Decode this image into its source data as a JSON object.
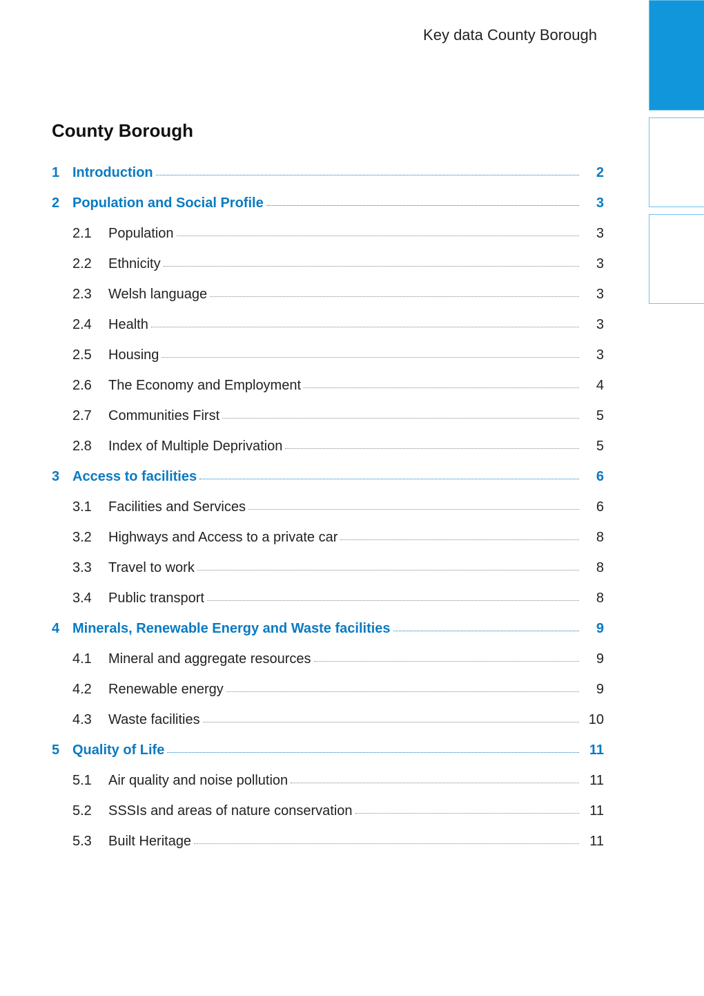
{
  "colors": {
    "accent": "#0a7ac2",
    "text": "#222222",
    "tab_border": "#6fc2e8",
    "tab_solid_bg": "#1296db"
  },
  "running_head": "Key data County Borough",
  "title": "County Borough",
  "toc": [
    {
      "kind": "section",
      "num": "1",
      "text": "Introduction",
      "page": "2"
    },
    {
      "kind": "section",
      "num": "2",
      "text": "Population and Social Profile",
      "page": "3"
    },
    {
      "kind": "sub",
      "sub": "2.1",
      "text": "Population",
      "page": "3"
    },
    {
      "kind": "sub",
      "sub": "2.2",
      "text": "Ethnicity",
      "page": "3"
    },
    {
      "kind": "sub",
      "sub": "2.3",
      "text": "Welsh language",
      "page": "3"
    },
    {
      "kind": "sub",
      "sub": "2.4",
      "text": "Health",
      "page": "3"
    },
    {
      "kind": "sub",
      "sub": "2.5",
      "text": "Housing",
      "page": "3"
    },
    {
      "kind": "sub",
      "sub": "2.6",
      "text": "The Economy and Employment",
      "page": "4"
    },
    {
      "kind": "sub",
      "sub": "2.7",
      "text": "Communities First",
      "page": "5"
    },
    {
      "kind": "sub",
      "sub": "2.8",
      "text": "Index of Multiple Deprivation",
      "page": "5"
    },
    {
      "kind": "section",
      "num": "3",
      "text": "Access to facilities",
      "page": "6"
    },
    {
      "kind": "sub",
      "sub": "3.1",
      "text": "Facilities and Services",
      "page": "6"
    },
    {
      "kind": "sub",
      "sub": "3.2",
      "text": "Highways and Access to a private car",
      "page": "8"
    },
    {
      "kind": "sub",
      "sub": "3.3",
      "text": "Travel to work",
      "page": "8"
    },
    {
      "kind": "sub",
      "sub": "3.4",
      "text": "Public transport",
      "page": "8"
    },
    {
      "kind": "section",
      "num": "4",
      "text": "Minerals, Renewable Energy and Waste facilities",
      "page": "9"
    },
    {
      "kind": "sub",
      "sub": "4.1",
      "text": "Mineral and aggregate resources",
      "page": "9"
    },
    {
      "kind": "sub",
      "sub": "4.2",
      "text": "Renewable energy",
      "page": "9"
    },
    {
      "kind": "sub",
      "sub": "4.3",
      "text": "Waste facilities",
      "page": "10"
    },
    {
      "kind": "section",
      "num": "5",
      "text": "Quality of Life",
      "page": "11"
    },
    {
      "kind": "sub",
      "sub": "5.1",
      "text": "Air quality and noise pollution",
      "page": "11"
    },
    {
      "kind": "sub",
      "sub": "5.2",
      "text": "SSSIs and areas of nature conservation",
      "page": "11"
    },
    {
      "kind": "sub",
      "sub": "5.3",
      "text": "Built Heritage",
      "page": "11"
    }
  ]
}
